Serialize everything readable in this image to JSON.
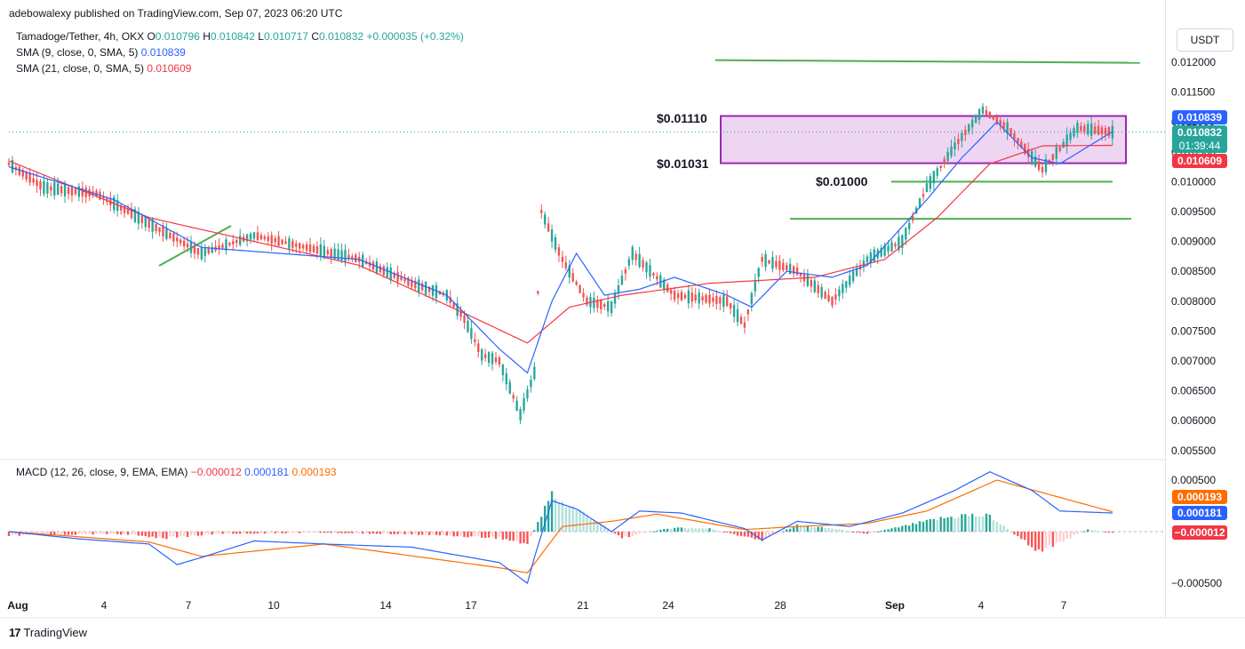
{
  "header": {
    "published": "adebowalexy published on TradingView.com, Sep 07, 2023 06:20 UTC"
  },
  "legend": {
    "main": {
      "symbol": "Tamadoge/Tether, 4h, OKX",
      "o_label": "O",
      "o": "0.010796",
      "h_label": "H",
      "h": "0.010842",
      "l_label": "L",
      "l": "0.010717",
      "c_label": "C",
      "c": "0.010832",
      "change": "+0.000035 (+0.32%)"
    },
    "sma9": {
      "label": "SMA (9, close, 0, SMA, 5)",
      "value": "0.010839"
    },
    "sma21": {
      "label": "SMA (21, close, 0, SMA, 5)",
      "value": "0.010609"
    },
    "macd": {
      "label": "MACD (12, 26, close, 9, EMA, EMA)",
      "hist": "−0.000012",
      "macd": "0.000181",
      "signal": "0.000193"
    }
  },
  "currency_button": "USDT",
  "price_tags": {
    "sma9": "0.010839",
    "last": "0.010832",
    "countdown": "01:39:44",
    "sma21": "0.010609"
  },
  "macd_tags": {
    "signal": "0.000193",
    "macd": "0.000181",
    "hist": "−0.000012"
  },
  "annotations": {
    "level_top": "$0.01110",
    "level_mid": "$0.01031",
    "level_low": "$0.01000"
  },
  "footer": {
    "brand": "TradingView"
  },
  "colors": {
    "up": "#26a69a",
    "down": "#ef5350",
    "sma9": "#2962ff",
    "sma21": "#f23645",
    "signal": "#ff6d00",
    "zone_fill": "#e8c7ee",
    "zone_border": "#9c27b0",
    "trend": "#4caf50"
  },
  "chart_data": [
    {
      "type": "candlestick",
      "title": "Tamadoge/Tether, 4h, OKX",
      "y_axis_ticks": [
        "0.012000",
        "0.011500",
        "0.011000",
        "0.010500",
        "0.010000",
        "0.009500",
        "0.009000",
        "0.008500",
        "0.008000",
        "0.007500",
        "0.007000",
        "0.006500",
        "0.006000",
        "0.005500"
      ],
      "x_axis_ticks": [
        "Aug",
        "4",
        "7",
        "10",
        "14",
        "17",
        "21",
        "24",
        "28",
        "Sep",
        "4",
        "7"
      ],
      "ylim": [
        0.0054,
        0.0124
      ],
      "resistance_zone": [
        0.01031,
        0.0111
      ],
      "support_levels": [
        0.01,
        0.00938
      ],
      "trend_line_top": 0.01202,
      "price_path": [
        [
          0,
          0.0103
        ],
        [
          10,
          0.0099
        ],
        [
          25,
          0.0098
        ],
        [
          40,
          0.0093
        ],
        [
          55,
          0.0088
        ],
        [
          60,
          0.0089
        ],
        [
          70,
          0.0091
        ],
        [
          85,
          0.0089
        ],
        [
          100,
          0.0087
        ],
        [
          115,
          0.0083
        ],
        [
          125,
          0.0081
        ],
        [
          130,
          0.0077
        ],
        [
          135,
          0.0071
        ],
        [
          140,
          0.007
        ],
        [
          146,
          0.0061
        ],
        [
          150,
          0.0068
        ],
        [
          152,
          0.0095
        ],
        [
          158,
          0.0087
        ],
        [
          165,
          0.008
        ],
        [
          172,
          0.0079
        ],
        [
          178,
          0.0088
        ],
        [
          190,
          0.0081
        ],
        [
          205,
          0.008
        ],
        [
          210,
          0.0076
        ],
        [
          215,
          0.0087
        ],
        [
          225,
          0.0085
        ],
        [
          235,
          0.008
        ],
        [
          245,
          0.0087
        ],
        [
          255,
          0.009
        ],
        [
          262,
          0.0099
        ],
        [
          270,
          0.0106
        ],
        [
          278,
          0.0112
        ],
        [
          285,
          0.0109
        ],
        [
          295,
          0.0102
        ],
        [
          305,
          0.0109
        ],
        [
          315,
          0.01083
        ]
      ],
      "sma9_path": [
        [
          0,
          0.01025
        ],
        [
          30,
          0.0097
        ],
        [
          55,
          0.0089
        ],
        [
          100,
          0.0087
        ],
        [
          125,
          0.0081
        ],
        [
          140,
          0.0072
        ],
        [
          148,
          0.0068
        ],
        [
          155,
          0.008
        ],
        [
          162,
          0.0088
        ],
        [
          170,
          0.0081
        ],
        [
          180,
          0.0082
        ],
        [
          190,
          0.0084
        ],
        [
          205,
          0.0081
        ],
        [
          212,
          0.0079
        ],
        [
          222,
          0.0085
        ],
        [
          235,
          0.0084
        ],
        [
          245,
          0.0086
        ],
        [
          262,
          0.0097
        ],
        [
          272,
          0.0104
        ],
        [
          282,
          0.011
        ],
        [
          292,
          0.0104
        ],
        [
          300,
          0.0103
        ],
        [
          315,
          0.010839
        ]
      ],
      "sma21_path": [
        [
          0,
          0.01035
        ],
        [
          40,
          0.0094
        ],
        [
          100,
          0.0086
        ],
        [
          130,
          0.0078
        ],
        [
          148,
          0.0073
        ],
        [
          160,
          0.0079
        ],
        [
          175,
          0.0081
        ],
        [
          200,
          0.0083
        ],
        [
          230,
          0.0084
        ],
        [
          250,
          0.0087
        ],
        [
          265,
          0.0094
        ],
        [
          280,
          0.0103
        ],
        [
          295,
          0.0106
        ],
        [
          315,
          0.010609
        ]
      ]
    },
    {
      "type": "macd",
      "title": "MACD (12, 26, close, 9, EMA, EMA)",
      "y_axis_ticks": [
        "0.000500",
        "−0.000500"
      ],
      "ylim": [
        -0.00062,
        0.00062
      ],
      "macd_path": [
        [
          0,
          0.0
        ],
        [
          20,
          -7e-05
        ],
        [
          40,
          -0.00012
        ],
        [
          48,
          -0.00032
        ],
        [
          55,
          -0.00025
        ],
        [
          70,
          -9e-05
        ],
        [
          90,
          -0.00012
        ],
        [
          115,
          -0.00015
        ],
        [
          140,
          -0.0003
        ],
        [
          148,
          -0.0005
        ],
        [
          150,
          -0.00025
        ],
        [
          155,
          0.0003
        ],
        [
          162,
          0.00022
        ],
        [
          172,
          0.0
        ],
        [
          180,
          0.0002
        ],
        [
          192,
          0.00018
        ],
        [
          210,
          3e-05
        ],
        [
          215,
          -8e-05
        ],
        [
          225,
          0.0001
        ],
        [
          240,
          5e-05
        ],
        [
          255,
          0.00018
        ],
        [
          270,
          0.0004
        ],
        [
          280,
          0.00058
        ],
        [
          292,
          0.0004
        ],
        [
          300,
          0.0002
        ],
        [
          315,
          0.000181
        ]
      ],
      "signal_path": [
        [
          0,
          0.0
        ],
        [
          40,
          -0.0001
        ],
        [
          55,
          -0.00024
        ],
        [
          90,
          -0.00012
        ],
        [
          140,
          -0.00035
        ],
        [
          148,
          -0.0004
        ],
        [
          158,
          5e-05
        ],
        [
          172,
          0.0001
        ],
        [
          185,
          0.00017
        ],
        [
          210,
          2e-05
        ],
        [
          225,
          5e-05
        ],
        [
          245,
          8e-05
        ],
        [
          262,
          0.0002
        ],
        [
          282,
          0.0005
        ],
        [
          298,
          0.00035
        ],
        [
          315,
          0.000193
        ]
      ],
      "histogram": [
        [
          0,
          -4e-05
        ],
        [
          15,
          -3e-05
        ],
        [
          30,
          -2e-05
        ],
        [
          45,
          -6e-05
        ],
        [
          60,
          -2e-05
        ],
        [
          90,
          -1e-05
        ],
        [
          120,
          -3e-05
        ],
        [
          140,
          -6e-05
        ],
        [
          148,
          -0.00012
        ],
        [
          152,
          0.00015
        ],
        [
          155,
          0.00036
        ],
        [
          158,
          0.00028
        ],
        [
          162,
          0.00022
        ],
        [
          166,
          0.00014
        ],
        [
          170,
          5e-05
        ],
        [
          175,
          -6e-05
        ],
        [
          180,
          -2e-05
        ],
        [
          190,
          4e-05
        ],
        [
          200,
          3e-05
        ],
        [
          210,
          -5e-05
        ],
        [
          215,
          -8e-05
        ],
        [
          225,
          6e-05
        ],
        [
          235,
          3e-05
        ],
        [
          245,
          -2e-05
        ],
        [
          255,
          5e-05
        ],
        [
          265,
          0.00012
        ],
        [
          272,
          0.00016
        ],
        [
          280,
          0.00015
        ],
        [
          288,
          -5e-05
        ],
        [
          294,
          -0.00018
        ],
        [
          300,
          -0.0001
        ],
        [
          308,
          2e-05
        ],
        [
          315,
          -1.2e-05
        ]
      ]
    }
  ]
}
